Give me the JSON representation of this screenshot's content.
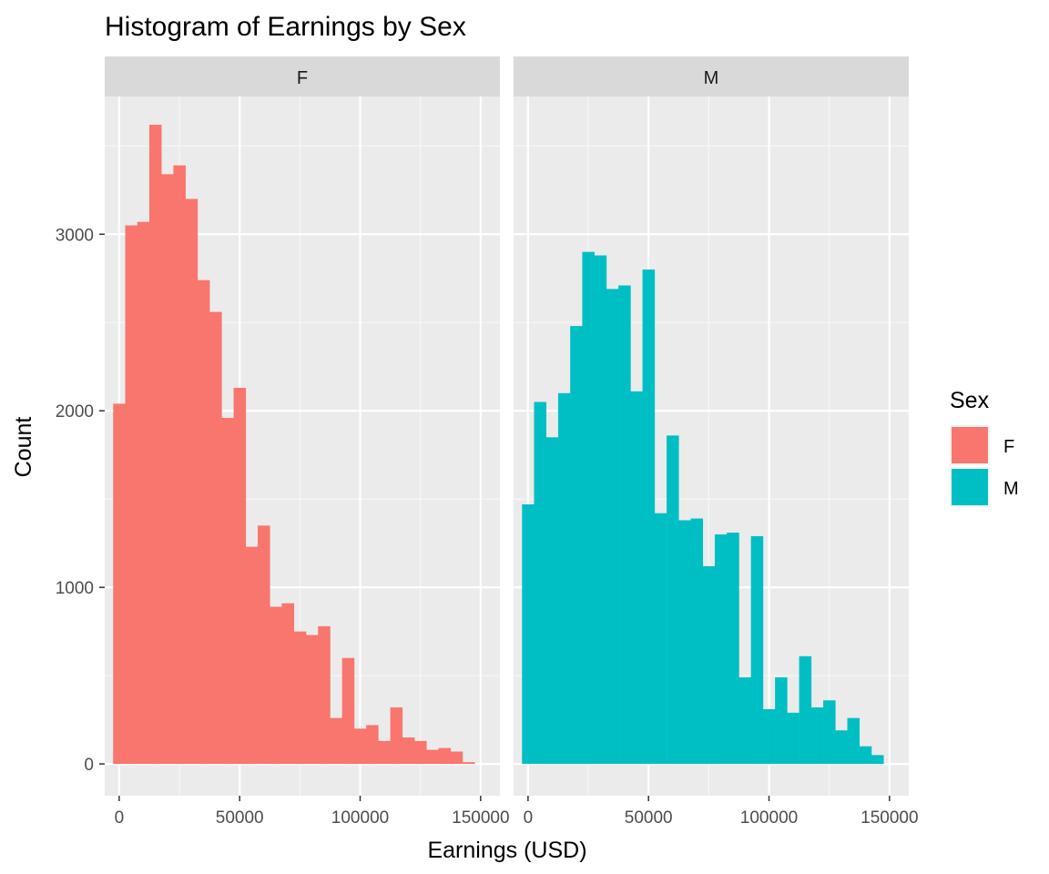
{
  "chart_data": {
    "type": "bar",
    "subtype": "faceted-histogram",
    "title": "Histogram of Earnings by Sex",
    "xlabel": "Earnings (USD)",
    "ylabel": "Count",
    "x_ticks": [
      0,
      50000,
      100000,
      150000
    ],
    "y_ticks": [
      0,
      1000,
      2000,
      3000
    ],
    "xlim": [
      -6000,
      158000
    ],
    "ylim": [
      -180,
      3780
    ],
    "grid": true,
    "bin_width": 5000,
    "bin_start": -2500,
    "legend": {
      "title": "Sex",
      "position": "right",
      "entries": [
        {
          "label": "F",
          "color": "#F8766D"
        },
        {
          "label": "M",
          "color": "#00BFC4"
        }
      ]
    },
    "panels": [
      {
        "label": "F",
        "color": "#F8766D",
        "counts": [
          2040,
          3050,
          3070,
          3620,
          3340,
          3390,
          3200,
          2740,
          2560,
          1960,
          2130,
          1230,
          1350,
          890,
          910,
          750,
          730,
          780,
          260,
          600,
          200,
          220,
          130,
          320,
          150,
          130,
          80,
          90,
          70,
          10
        ]
      },
      {
        "label": "M",
        "color": "#00BFC4",
        "counts": [
          1470,
          2050,
          1850,
          2100,
          2480,
          2900,
          2880,
          2690,
          2710,
          2110,
          2800,
          1420,
          1860,
          1380,
          1390,
          1120,
          1300,
          1310,
          490,
          1290,
          310,
          490,
          290,
          610,
          320,
          360,
          190,
          260,
          100,
          50
        ]
      }
    ]
  }
}
